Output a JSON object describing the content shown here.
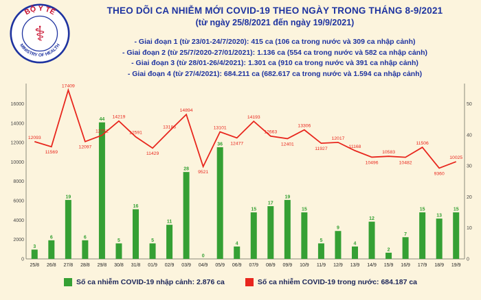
{
  "header": {
    "title": "THEO DÕI CA NHIỄM MỚI COVID-19 THEO NGÀY TRONG THÁNG 8-9/2021",
    "subtitle": "(từ ngày 25/8/2021 đến ngày 19/9/2021)",
    "periods": [
      "- Giai đoạn 1 (từ 23/01-24/7/2020): 415 ca (106 ca trong nước và 309 ca nhập cảnh)",
      "- Giai đoạn 2 (từ 25/7/2020-27/01/2021): 1.136 ca (554 ca trong nước và 582 ca nhập cảnh)",
      "- Giai đoạn 3 (từ 28/01-26/4/2021): 1.301 ca (910 ca trong nước và 391 ca nhập cảnh)",
      "- Giai đoạn 4 (từ 27/4/2021): 684.211 ca (682.617 ca trong nước và 1.594 ca nhập cảnh)"
    ]
  },
  "logo": {
    "top_text": "BỘ Y TẾ",
    "bottom_text": "MINISTRY OF HEALTH",
    "symbol": "⚕"
  },
  "colors": {
    "background": "#fcf4dd",
    "title": "#1e33a0",
    "bar": "#35a034",
    "line": "#e8261d"
  },
  "chart_data": {
    "type": "combo",
    "title": "THEO DÕI CA NHIỄM MỚI COVID-19 THEO NGÀY TRONG THÁNG 8-9/2021",
    "subtitle": "(từ ngày 25/8/2021 đến ngày 19/9/2021)",
    "grid": false,
    "legend_position": "bottom",
    "categories": [
      "25/8",
      "26/8",
      "27/8",
      "28/8",
      "29/8",
      "30/8",
      "31/8",
      "01/9",
      "02/9",
      "03/9",
      "04/9",
      "05/9",
      "06/9",
      "07/9",
      "08/9",
      "09/9",
      "10/9",
      "11/9",
      "12/9",
      "13/9",
      "14/9",
      "15/9",
      "16/9",
      "17/9",
      "18/9",
      "19/9"
    ],
    "series": [
      {
        "name": "Số ca nhiễm COVID-19 nhập cảnh",
        "type": "bar",
        "axis": "right",
        "color": "#35a034",
        "total_label": "2.876 ca",
        "values": [
          3,
          6,
          19,
          6,
          44,
          5,
          16,
          5,
          11,
          28,
          0,
          36,
          4,
          15,
          17,
          19,
          15,
          5,
          9,
          4,
          12,
          2,
          7,
          15,
          13,
          15
        ]
      },
      {
        "name": "Số ca nhiễm COVID-19 trong nước",
        "type": "line",
        "axis": "left",
        "color": "#e8261d",
        "total_label": "684.187 ca",
        "values": [
          12093,
          11569,
          17409,
          12097,
          12752,
          14219,
          12591,
          11429,
          13186,
          14894,
          9521,
          13101,
          12477,
          14193,
          12663,
          12401,
          13306,
          11927,
          12017,
          11168,
          10496,
          10583,
          10482,
          11506,
          9360,
          10025
        ]
      }
    ],
    "left_axis": {
      "ticks": [
        0,
        2000,
        4000,
        6000,
        8000,
        10000,
        12000,
        14000,
        16000
      ],
      "plot_max": 17800
    },
    "right_axis": {
      "ticks": [
        0,
        10,
        20,
        30,
        40,
        50
      ],
      "left_units_per_right_unit": 320
    }
  },
  "legend": [
    {
      "label": "Số ca nhiễm COVID-19 nhập cảnh: 2.876 ca",
      "color": "#35a034"
    },
    {
      "label": "Số ca nhiễm COVID-19 trong nước: 684.187 ca",
      "color": "#e8261d"
    }
  ]
}
